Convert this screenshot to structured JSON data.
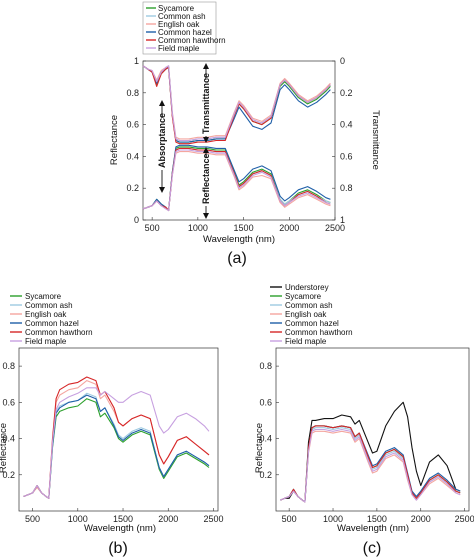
{
  "colors": {
    "Understorey": "#111111",
    "Sycamore": "#2ca02c",
    "Common ash": "#9ecae1",
    "English oak": "#f4a6a0",
    "Common hazel": "#1f5fa8",
    "Common hawthorn": "#d62728",
    "Field maple": "#c7a0e0"
  },
  "chart_data": [
    {
      "panel_label": "(a)",
      "type": "line",
      "xlabel": "Wavelength (nm)",
      "ylabel": "Reflectance",
      "y2label": "Transmittance",
      "xlim": [
        400,
        2500
      ],
      "ylim": [
        0,
        1
      ],
      "y2lim": [
        1,
        0
      ],
      "xticks": [
        "500",
        "1000",
        "1500",
        "2000",
        "2500"
      ],
      "yticks": [
        "0",
        "0.2",
        "0.4",
        "0.6",
        "0.8",
        "1"
      ],
      "y2ticks": [
        "0",
        "0.2",
        "0.4",
        "0.6",
        "0.8",
        "1"
      ],
      "grid": false,
      "legend": "top-left, outside",
      "annotations": [
        "Absorptance",
        "Transmittance",
        "Reflectance"
      ],
      "x": [
        400,
        450,
        500,
        550,
        600,
        650,
        680,
        720,
        760,
        800,
        900,
        1000,
        1100,
        1200,
        1300,
        1400,
        1450,
        1500,
        1600,
        1700,
        1800,
        1900,
        1950,
        2000,
        2100,
        2200,
        2300,
        2400,
        2450
      ],
      "reflectance_series": [
        {
          "name": "Sycamore",
          "values": [
            0.07,
            0.08,
            0.09,
            0.13,
            0.1,
            0.08,
            0.06,
            0.3,
            0.45,
            0.46,
            0.46,
            0.45,
            0.45,
            0.44,
            0.44,
            0.3,
            0.22,
            0.24,
            0.3,
            0.32,
            0.29,
            0.13,
            0.1,
            0.12,
            0.17,
            0.19,
            0.16,
            0.12,
            0.11
          ]
        },
        {
          "name": "Common ash",
          "values": [
            0.07,
            0.08,
            0.09,
            0.12,
            0.09,
            0.08,
            0.06,
            0.29,
            0.44,
            0.45,
            0.45,
            0.44,
            0.44,
            0.43,
            0.43,
            0.29,
            0.21,
            0.23,
            0.29,
            0.31,
            0.28,
            0.13,
            0.1,
            0.12,
            0.16,
            0.18,
            0.15,
            0.12,
            0.11
          ]
        },
        {
          "name": "English oak",
          "values": [
            0.07,
            0.08,
            0.09,
            0.12,
            0.09,
            0.07,
            0.06,
            0.28,
            0.42,
            0.43,
            0.43,
            0.42,
            0.42,
            0.41,
            0.41,
            0.27,
            0.19,
            0.21,
            0.27,
            0.28,
            0.26,
            0.11,
            0.08,
            0.1,
            0.14,
            0.16,
            0.13,
            0.1,
            0.09
          ]
        },
        {
          "name": "Common hazel",
          "values": [
            0.07,
            0.08,
            0.09,
            0.13,
            0.1,
            0.08,
            0.06,
            0.3,
            0.46,
            0.47,
            0.47,
            0.46,
            0.46,
            0.45,
            0.45,
            0.31,
            0.24,
            0.26,
            0.32,
            0.34,
            0.31,
            0.15,
            0.12,
            0.14,
            0.19,
            0.21,
            0.18,
            0.14,
            0.13
          ]
        },
        {
          "name": "Common hawthorn",
          "values": [
            0.07,
            0.08,
            0.09,
            0.12,
            0.09,
            0.08,
            0.06,
            0.29,
            0.44,
            0.45,
            0.45,
            0.44,
            0.44,
            0.43,
            0.43,
            0.29,
            0.21,
            0.23,
            0.29,
            0.31,
            0.28,
            0.12,
            0.09,
            0.11,
            0.16,
            0.18,
            0.15,
            0.11,
            0.1
          ]
        },
        {
          "name": "Field maple",
          "values": [
            0.07,
            0.08,
            0.09,
            0.12,
            0.09,
            0.07,
            0.06,
            0.28,
            0.43,
            0.44,
            0.44,
            0.43,
            0.43,
            0.42,
            0.42,
            0.28,
            0.2,
            0.22,
            0.28,
            0.3,
            0.27,
            0.12,
            0.09,
            0.11,
            0.15,
            0.17,
            0.14,
            0.11,
            0.1
          ]
        }
      ],
      "transmittance_series": [
        {
          "name": "Sycamore",
          "values": [
            0.03,
            0.05,
            0.07,
            0.15,
            0.08,
            0.05,
            0.04,
            0.34,
            0.5,
            0.51,
            0.51,
            0.5,
            0.5,
            0.49,
            0.49,
            0.34,
            0.27,
            0.3,
            0.38,
            0.4,
            0.36,
            0.16,
            0.13,
            0.16,
            0.23,
            0.27,
            0.24,
            0.19,
            0.16
          ]
        },
        {
          "name": "Common ash",
          "values": [
            0.03,
            0.05,
            0.07,
            0.13,
            0.07,
            0.04,
            0.03,
            0.33,
            0.49,
            0.5,
            0.5,
            0.49,
            0.49,
            0.48,
            0.48,
            0.33,
            0.26,
            0.29,
            0.37,
            0.39,
            0.35,
            0.15,
            0.12,
            0.15,
            0.22,
            0.26,
            0.23,
            0.18,
            0.15
          ]
        },
        {
          "name": "English oak",
          "values": [
            0.03,
            0.05,
            0.06,
            0.12,
            0.06,
            0.04,
            0.03,
            0.32,
            0.48,
            0.49,
            0.49,
            0.48,
            0.48,
            0.47,
            0.47,
            0.32,
            0.25,
            0.28,
            0.36,
            0.38,
            0.34,
            0.14,
            0.11,
            0.14,
            0.21,
            0.25,
            0.22,
            0.17,
            0.14
          ]
        },
        {
          "name": "Common hazel",
          "values": [
            0.03,
            0.05,
            0.07,
            0.14,
            0.07,
            0.05,
            0.04,
            0.34,
            0.5,
            0.51,
            0.51,
            0.5,
            0.5,
            0.49,
            0.49,
            0.36,
            0.29,
            0.33,
            0.41,
            0.43,
            0.39,
            0.18,
            0.15,
            0.18,
            0.25,
            0.29,
            0.26,
            0.21,
            0.18
          ]
        },
        {
          "name": "Common hawthorn",
          "values": [
            0.03,
            0.05,
            0.07,
            0.16,
            0.08,
            0.05,
            0.04,
            0.35,
            0.51,
            0.52,
            0.52,
            0.51,
            0.51,
            0.5,
            0.5,
            0.34,
            0.27,
            0.3,
            0.38,
            0.4,
            0.36,
            0.15,
            0.12,
            0.15,
            0.22,
            0.26,
            0.23,
            0.18,
            0.15
          ]
        },
        {
          "name": "Field maple",
          "values": [
            0.03,
            0.05,
            0.06,
            0.13,
            0.07,
            0.04,
            0.03,
            0.33,
            0.49,
            0.5,
            0.5,
            0.49,
            0.49,
            0.48,
            0.48,
            0.33,
            0.26,
            0.29,
            0.37,
            0.39,
            0.35,
            0.15,
            0.12,
            0.15,
            0.22,
            0.26,
            0.23,
            0.18,
            0.15
          ]
        }
      ]
    },
    {
      "panel_label": "(b)",
      "type": "line",
      "xlabel": "Wavelength (nm)",
      "ylabel": "Reflectance",
      "xlim": [
        350,
        2550
      ],
      "ylim": [
        0,
        0.9
      ],
      "xticks": [
        "500",
        "1000",
        "1500",
        "2000",
        "2500"
      ],
      "yticks": [
        "0.2",
        "0.4",
        "0.6",
        "0.8"
      ],
      "grid": false,
      "legend": "top-left, outside",
      "x": [
        400,
        450,
        500,
        550,
        600,
        650,
        680,
        720,
        760,
        800,
        900,
        1000,
        1100,
        1200,
        1250,
        1300,
        1400,
        1450,
        1500,
        1600,
        1700,
        1800,
        1900,
        1950,
        2000,
        2100,
        2200,
        2300,
        2400,
        2450
      ],
      "series": [
        {
          "name": "Sycamore",
          "values": [
            0.08,
            0.09,
            0.1,
            0.14,
            0.1,
            0.08,
            0.07,
            0.35,
            0.52,
            0.55,
            0.57,
            0.58,
            0.62,
            0.6,
            0.52,
            0.54,
            0.46,
            0.4,
            0.38,
            0.42,
            0.44,
            0.42,
            0.23,
            0.18,
            0.22,
            0.3,
            0.32,
            0.29,
            0.26,
            0.24
          ]
        },
        {
          "name": "Common ash",
          "values": [
            0.08,
            0.09,
            0.1,
            0.14,
            0.1,
            0.08,
            0.07,
            0.36,
            0.55,
            0.58,
            0.6,
            0.61,
            0.65,
            0.63,
            0.55,
            0.57,
            0.48,
            0.42,
            0.4,
            0.44,
            0.46,
            0.44,
            0.24,
            0.19,
            0.23,
            0.31,
            0.33,
            0.3,
            0.27,
            0.25
          ]
        },
        {
          "name": "English oak",
          "values": [
            0.08,
            0.09,
            0.1,
            0.13,
            0.1,
            0.08,
            0.07,
            0.38,
            0.6,
            0.64,
            0.67,
            0.68,
            0.72,
            0.7,
            0.62,
            0.64,
            0.55,
            0.49,
            0.47,
            0.51,
            0.53,
            0.51,
            0.31,
            0.26,
            0.3,
            0.39,
            0.41,
            0.37,
            0.33,
            0.31
          ]
        },
        {
          "name": "Common hazel",
          "values": [
            0.08,
            0.09,
            0.1,
            0.14,
            0.1,
            0.08,
            0.07,
            0.36,
            0.54,
            0.57,
            0.6,
            0.61,
            0.64,
            0.62,
            0.55,
            0.57,
            0.47,
            0.41,
            0.39,
            0.43,
            0.45,
            0.43,
            0.24,
            0.19,
            0.23,
            0.31,
            0.33,
            0.3,
            0.27,
            0.25
          ]
        },
        {
          "name": "Common hawthorn",
          "values": [
            0.08,
            0.09,
            0.1,
            0.14,
            0.1,
            0.08,
            0.07,
            0.4,
            0.62,
            0.67,
            0.7,
            0.71,
            0.74,
            0.72,
            0.64,
            0.66,
            0.57,
            0.49,
            0.47,
            0.51,
            0.53,
            0.51,
            0.31,
            0.26,
            0.3,
            0.39,
            0.41,
            0.37,
            0.33,
            0.31
          ]
        },
        {
          "name": "Field maple",
          "values": [
            0.08,
            0.09,
            0.1,
            0.14,
            0.1,
            0.08,
            0.07,
            0.38,
            0.56,
            0.6,
            0.63,
            0.65,
            0.68,
            0.68,
            0.64,
            0.66,
            0.62,
            0.6,
            0.6,
            0.64,
            0.66,
            0.64,
            0.47,
            0.43,
            0.45,
            0.52,
            0.54,
            0.51,
            0.47,
            0.44
          ]
        }
      ]
    },
    {
      "panel_label": "(c)",
      "type": "line",
      "xlabel": "Wavelength (nm)",
      "ylabel": "Reflectance",
      "xlim": [
        350,
        2550
      ],
      "ylim": [
        0,
        0.9
      ],
      "xticks": [
        "500",
        "1000",
        "1500",
        "2000",
        "2500"
      ],
      "yticks": [
        "0.2",
        "0.4",
        "0.6",
        "0.8"
      ],
      "grid": false,
      "legend": "top-left, outside",
      "x": [
        400,
        450,
        500,
        550,
        600,
        650,
        680,
        720,
        760,
        800,
        900,
        1000,
        1100,
        1200,
        1250,
        1300,
        1400,
        1450,
        1500,
        1600,
        1700,
        1800,
        1850,
        1900,
        1950,
        2000,
        2100,
        2200,
        2300,
        2400,
        2450
      ],
      "series": [
        {
          "name": "Understorey",
          "values": [
            0.06,
            0.07,
            0.07,
            0.11,
            0.08,
            0.06,
            0.05,
            0.38,
            0.5,
            0.5,
            0.51,
            0.51,
            0.53,
            0.52,
            0.48,
            0.5,
            0.38,
            0.32,
            0.33,
            0.47,
            0.55,
            0.6,
            0.52,
            0.35,
            0.22,
            0.14,
            0.27,
            0.31,
            0.25,
            0.12,
            0.11
          ]
        },
        {
          "name": "Sycamore",
          "values": [
            0.06,
            0.07,
            0.08,
            0.12,
            0.08,
            0.06,
            0.05,
            0.34,
            0.46,
            0.47,
            0.47,
            0.46,
            0.47,
            0.46,
            0.41,
            0.43,
            0.3,
            0.24,
            0.25,
            0.32,
            0.34,
            0.3,
            0.2,
            0.1,
            0.07,
            0.1,
            0.17,
            0.2,
            0.16,
            0.11,
            0.1
          ]
        },
        {
          "name": "Common ash",
          "values": [
            0.06,
            0.07,
            0.08,
            0.11,
            0.08,
            0.06,
            0.05,
            0.33,
            0.45,
            0.46,
            0.46,
            0.45,
            0.46,
            0.45,
            0.4,
            0.42,
            0.29,
            0.23,
            0.24,
            0.31,
            0.33,
            0.29,
            0.19,
            0.1,
            0.07,
            0.1,
            0.16,
            0.19,
            0.15,
            0.11,
            0.1
          ]
        },
        {
          "name": "English oak",
          "values": [
            0.06,
            0.07,
            0.08,
            0.11,
            0.08,
            0.06,
            0.05,
            0.32,
            0.43,
            0.44,
            0.44,
            0.43,
            0.44,
            0.43,
            0.38,
            0.4,
            0.27,
            0.21,
            0.22,
            0.29,
            0.31,
            0.27,
            0.17,
            0.09,
            0.06,
            0.09,
            0.15,
            0.18,
            0.14,
            0.1,
            0.09
          ]
        },
        {
          "name": "Common hazel",
          "values": [
            0.06,
            0.07,
            0.08,
            0.12,
            0.08,
            0.06,
            0.05,
            0.34,
            0.46,
            0.47,
            0.47,
            0.46,
            0.47,
            0.46,
            0.41,
            0.43,
            0.31,
            0.25,
            0.26,
            0.33,
            0.35,
            0.31,
            0.21,
            0.11,
            0.08,
            0.11,
            0.18,
            0.21,
            0.17,
            0.12,
            0.11
          ]
        },
        {
          "name": "Common hawthorn",
          "values": [
            0.06,
            0.07,
            0.08,
            0.12,
            0.08,
            0.06,
            0.05,
            0.35,
            0.46,
            0.47,
            0.47,
            0.46,
            0.47,
            0.46,
            0.41,
            0.43,
            0.3,
            0.24,
            0.25,
            0.32,
            0.34,
            0.3,
            0.2,
            0.1,
            0.07,
            0.1,
            0.17,
            0.2,
            0.16,
            0.11,
            0.1
          ]
        },
        {
          "name": "Field maple",
          "values": [
            0.06,
            0.07,
            0.08,
            0.11,
            0.08,
            0.06,
            0.05,
            0.33,
            0.44,
            0.45,
            0.45,
            0.44,
            0.45,
            0.44,
            0.39,
            0.41,
            0.28,
            0.22,
            0.23,
            0.3,
            0.32,
            0.28,
            0.18,
            0.09,
            0.06,
            0.09,
            0.16,
            0.19,
            0.15,
            0.1,
            0.09
          ]
        }
      ]
    }
  ]
}
